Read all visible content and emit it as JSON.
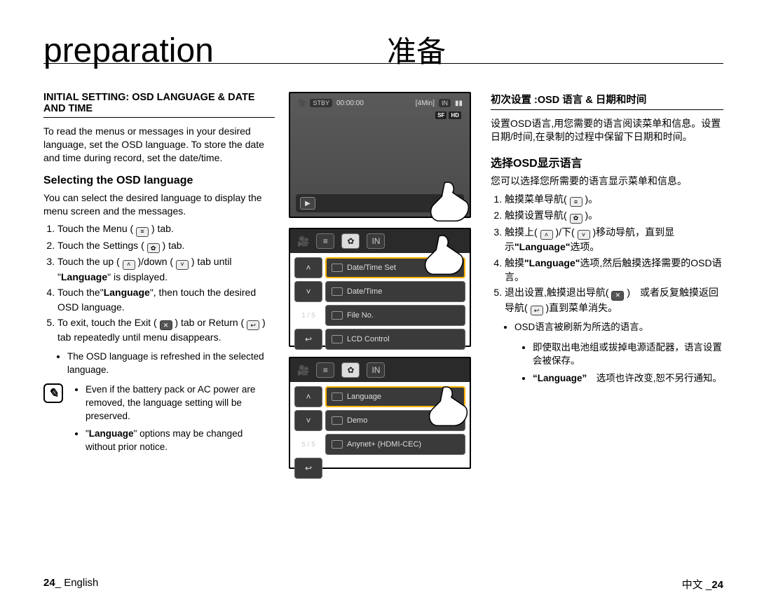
{
  "titles": {
    "en": "preparation",
    "zh": "准备"
  },
  "left": {
    "heading": "INITIAL SETTING: OSD LANGUAGE & DATE AND TIME",
    "intro": "To read the menus or messages in your desired language, set the OSD language. To store the date and time during record, set the date/time.",
    "sub": "Selecting the OSD language",
    "sub_desc": "You can select the desired language to display the menu screen and the messages.",
    "steps": [
      "Touch the Menu ( <span class=\"inline-icon\">≡</span> ) tab.",
      "Touch the Settings ( <span class=\"inline-icon\">✿</span> ) tab.",
      "Touch the up ( <span class=\"inline-icon\">˄</span> )/down ( <span class=\"inline-icon\">˅</span> ) tab until \"<b>Language</b>\" is displayed.",
      "Touch the\"<b>Language</b>\", then touch the desired OSD language.",
      "To exit, touch the Exit ( <span class=\"inline-icon dark\">✕</span> ) tab or Return ( <span class=\"inline-icon\">↩</span> ) tab repeatedly until menu disappears."
    ],
    "sub_bullet": "The OSD language is refreshed in the selected language.",
    "notes": [
      "Even if the battery pack or AC power are removed, the language setting will be preserved.",
      "\"<b>Language</b>\" options may be changed without prior notice."
    ]
  },
  "right": {
    "heading": "初次设置 :OSD 语言 & 日期和时间",
    "intro": "设置OSD语言,用您需要的语言阅读菜单和信息。设置日期/时间,在录制的过程中保留下日期和时间。",
    "sub": "选择OSD显示语言",
    "sub_desc": "您可以选择您所需要的语言显示菜单和信息。",
    "steps": [
      "触摸菜单导航( <span class=\"inline-icon\">≡</span> )。",
      "触摸设置导航( <span class=\"inline-icon\">✿</span> )。",
      "触摸上( <span class=\"inline-icon\">˄</span> )/下( <span class=\"inline-icon\">˅</span> )移动导航，直到显示<b>\"Language\"</b>选项。",
      "触摸<b>\"Language\"</b>选项,然后触摸选择需要的OSD语言。",
      "退出设置,触摸退出导航( <span class=\"inline-icon dark\">✕</span> )　或者反复触摸返回导航( <span class=\"inline-icon\">↩</span> )直到菜单消失。"
    ],
    "sub_bullet": "OSD语言被刷新为所选的语言。",
    "notes": [
      "即使取出电池组或拔掉电源适配器，语言设置会被保存。",
      "<b>“Language”</b>　选项也许改变,恕不另行通知。"
    ]
  },
  "screens": {
    "top": {
      "stby": "STBY",
      "time": "00:00:00",
      "remain": "[4Min]",
      "in": "IN",
      "badges": [
        "SF",
        "HD"
      ]
    },
    "menu1": {
      "page": "1 / 5",
      "rows": [
        "Date/Time Set",
        "Date/Time",
        "File No.",
        "LCD Control"
      ]
    },
    "menu2": {
      "page": "5 / 5",
      "rows": [
        "Language",
        "Demo",
        "Anynet+ (HDMI-CEC)"
      ]
    }
  },
  "footer": {
    "left_num": "24",
    "left_lang": "English",
    "right_lang": "中文",
    "right_num": "24"
  },
  "colors": {
    "text": "#000000",
    "panel_border": "#000000",
    "lcd_bg_top": "#5a5a5a",
    "lcd_bg_bottom": "#4a4a4a",
    "menu_dark": "#2a2a2a",
    "menu_tile": "#3a3a3a",
    "highlight": "#ffb400",
    "icon_box": "#eeeeee"
  }
}
